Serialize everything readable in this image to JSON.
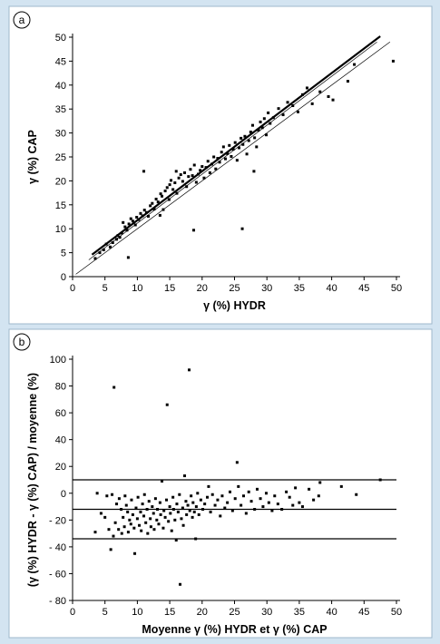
{
  "chart_data": [
    {
      "panel_label": "a",
      "type": "scatter",
      "xlabel": "γ (%) HYDR",
      "ylabel": "γ (%) CAP",
      "xlim": [
        0,
        50
      ],
      "ylim": [
        0,
        50
      ],
      "xticks": [
        "0",
        "5",
        "10",
        "15",
        "20",
        "25",
        "30",
        "35",
        "40",
        "45",
        "50"
      ],
      "yticks": [
        "0",
        "5",
        "10",
        "15",
        "20",
        "25",
        "30",
        "35",
        "40",
        "45",
        "50"
      ],
      "grid": false,
      "lines": [
        {
          "kind": "regression",
          "x": [
            3,
            47.5
          ],
          "y": [
            4.6,
            50.2
          ]
        },
        {
          "kind": "identity",
          "x": [
            0.5,
            49
          ],
          "y": [
            0.5,
            49
          ]
        },
        {
          "kind": "upper-band",
          "x": [
            2.5,
            47
          ],
          "y": [
            3.5,
            49
          ]
        }
      ],
      "points": [
        [
          3.5,
          3.8
        ],
        [
          4.2,
          5.0
        ],
        [
          4.8,
          5.6
        ],
        [
          5.2,
          6.8
        ],
        [
          5.8,
          6.2
        ],
        [
          6.2,
          7.1
        ],
        [
          6.8,
          7.8
        ],
        [
          7.0,
          8.6
        ],
        [
          7.3,
          8.2
        ],
        [
          7.6,
          9.1
        ],
        [
          7.8,
          11.3
        ],
        [
          8.1,
          10.4
        ],
        [
          8.4,
          9.7
        ],
        [
          8.7,
          11.0
        ],
        [
          8.6,
          4.0
        ],
        [
          9.0,
          12.1
        ],
        [
          9.3,
          11.6
        ],
        [
          9.7,
          10.8
        ],
        [
          9.9,
          12.4
        ],
        [
          10.2,
          11.9
        ],
        [
          10.5,
          13.2
        ],
        [
          10.8,
          12.7
        ],
        [
          11.0,
          22.0
        ],
        [
          11.1,
          13.9
        ],
        [
          11.4,
          13.4
        ],
        [
          11.7,
          12.6
        ],
        [
          12.0,
          14.8
        ],
        [
          12.3,
          15.3
        ],
        [
          12.6,
          14.1
        ],
        [
          12.9,
          16.2
        ],
        [
          13.2,
          15.6
        ],
        [
          13.5,
          12.8
        ],
        [
          13.6,
          17.3
        ],
        [
          13.8,
          16.8
        ],
        [
          14.0,
          14.0
        ],
        [
          14.3,
          17.9
        ],
        [
          14.6,
          18.6
        ],
        [
          14.9,
          16.1
        ],
        [
          15.0,
          19.2
        ],
        [
          15.2,
          20.1
        ],
        [
          15.5,
          18.2
        ],
        [
          15.8,
          19.6
        ],
        [
          16.0,
          22.0
        ],
        [
          16.1,
          17.4
        ],
        [
          16.4,
          20.6
        ],
        [
          16.7,
          21.3
        ],
        [
          17.0,
          19.9
        ],
        [
          17.3,
          21.7
        ],
        [
          17.6,
          18.8
        ],
        [
          17.9,
          20.9
        ],
        [
          18.2,
          22.4
        ],
        [
          18.5,
          21.1
        ],
        [
          18.7,
          9.7
        ],
        [
          18.8,
          23.3
        ],
        [
          19.1,
          19.7
        ],
        [
          19.4,
          21.4
        ],
        [
          19.7,
          22.2
        ],
        [
          20.0,
          23.0
        ],
        [
          20.3,
          20.6
        ],
        [
          20.6,
          22.8
        ],
        [
          20.9,
          24.1
        ],
        [
          21.2,
          21.7
        ],
        [
          21.5,
          23.5
        ],
        [
          21.8,
          25.0
        ],
        [
          22.1,
          22.5
        ],
        [
          22.4,
          24.7
        ],
        [
          22.7,
          23.9
        ],
        [
          23.0,
          26.0
        ],
        [
          23.3,
          27.1
        ],
        [
          23.6,
          24.6
        ],
        [
          23.9,
          25.7
        ],
        [
          24.2,
          27.4
        ],
        [
          24.5,
          25.1
        ],
        [
          24.8,
          26.6
        ],
        [
          25.1,
          28.0
        ],
        [
          25.4,
          24.3
        ],
        [
          25.7,
          26.9
        ],
        [
          26.0,
          28.9
        ],
        [
          26.2,
          10.0
        ],
        [
          26.3,
          27.6
        ],
        [
          26.6,
          29.3
        ],
        [
          26.9,
          25.6
        ],
        [
          27.2,
          28.4
        ],
        [
          27.5,
          30.2
        ],
        [
          27.8,
          31.6
        ],
        [
          28.0,
          22.0
        ],
        [
          28.1,
          29.0
        ],
        [
          28.4,
          27.1
        ],
        [
          28.7,
          30.6
        ],
        [
          29.0,
          32.3
        ],
        [
          29.3,
          31.1
        ],
        [
          29.6,
          33.0
        ],
        [
          29.9,
          29.6
        ],
        [
          30.2,
          34.2
        ],
        [
          30.5,
          32.0
        ],
        [
          31.0,
          33.2
        ],
        [
          31.8,
          35.1
        ],
        [
          32.5,
          33.8
        ],
        [
          33.2,
          36.4
        ],
        [
          34.0,
          35.7
        ],
        [
          34.8,
          34.4
        ],
        [
          35.5,
          38.0
        ],
        [
          36.2,
          39.4
        ],
        [
          37.0,
          36.1
        ],
        [
          38.2,
          38.6
        ],
        [
          39.5,
          37.6
        ],
        [
          40.2,
          36.9
        ],
        [
          42.5,
          40.8
        ],
        [
          43.5,
          44.3
        ],
        [
          49.5,
          45.0
        ]
      ]
    },
    {
      "panel_label": "b",
      "type": "scatter",
      "xlabel": "Moyenne γ (%) HYDR et γ (%) CAP",
      "ylabel": "(γ (%) HYDR - γ (%) CAP) / moyenne (%)",
      "xlim": [
        0,
        50
      ],
      "ylim": [
        -80,
        100
      ],
      "xticks": [
        "0",
        "5",
        "10",
        "15",
        "20",
        "25",
        "30",
        "35",
        "40",
        "45",
        "50"
      ],
      "yticks": [
        "- 80",
        "- 60",
        "- 40",
        "- 20",
        "0",
        "20",
        "40",
        "60",
        "80",
        "100"
      ],
      "grid": false,
      "hlines": [
        {
          "kind": "upper-limit",
          "y": 10
        },
        {
          "kind": "mean",
          "y": -12
        },
        {
          "kind": "lower-limit",
          "y": -34
        }
      ],
      "points": [
        [
          3.5,
          -29
        ],
        [
          3.8,
          0
        ],
        [
          4.4,
          -15
        ],
        [
          5.0,
          -18
        ],
        [
          5.3,
          -2
        ],
        [
          5.6,
          -27
        ],
        [
          5.9,
          -42
        ],
        [
          6.1,
          -1
        ],
        [
          6.4,
          79
        ],
        [
          6.3,
          -32
        ],
        [
          6.6,
          -22
        ],
        [
          6.8,
          -8
        ],
        [
          7.1,
          -27
        ],
        [
          7.2,
          -4
        ],
        [
          7.5,
          -12
        ],
        [
          7.6,
          -30
        ],
        [
          7.8,
          -18
        ],
        [
          8.0,
          -25
        ],
        [
          8.1,
          -2
        ],
        [
          8.3,
          -9
        ],
        [
          8.5,
          -14
        ],
        [
          8.6,
          -29
        ],
        [
          8.8,
          -20
        ],
        [
          9.0,
          -23
        ],
        [
          9.1,
          -5
        ],
        [
          9.3,
          -16
        ],
        [
          9.5,
          -26
        ],
        [
          9.6,
          -45
        ],
        [
          9.8,
          -11
        ],
        [
          10.0,
          -19
        ],
        [
          10.1,
          -3
        ],
        [
          10.3,
          -24
        ],
        [
          10.5,
          -14
        ],
        [
          10.6,
          -28
        ],
        [
          10.8,
          -8
        ],
        [
          11.0,
          -17
        ],
        [
          11.1,
          -1
        ],
        [
          11.3,
          -22
        ],
        [
          11.5,
          -12
        ],
        [
          11.6,
          -30
        ],
        [
          11.8,
          -6
        ],
        [
          12.0,
          -19
        ],
        [
          12.1,
          -25
        ],
        [
          12.3,
          -10
        ],
        [
          12.5,
          -15
        ],
        [
          12.6,
          -27
        ],
        [
          12.8,
          -4
        ],
        [
          13.0,
          -20
        ],
        [
          13.1,
          -12
        ],
        [
          13.3,
          -23
        ],
        [
          13.5,
          -7
        ],
        [
          13.6,
          -16
        ],
        [
          13.8,
          9
        ],
        [
          14.0,
          -26
        ],
        [
          14.1,
          -13
        ],
        [
          14.3,
          -18
        ],
        [
          14.5,
          -5
        ],
        [
          14.6,
          66
        ],
        [
          14.8,
          -21
        ],
        [
          15.0,
          -10
        ],
        [
          15.1,
          -15
        ],
        [
          15.3,
          -28
        ],
        [
          15.5,
          -3
        ],
        [
          15.6,
          -12
        ],
        [
          15.8,
          -20
        ],
        [
          16.0,
          -35
        ],
        [
          16.1,
          -8
        ],
        [
          16.3,
          -14
        ],
        [
          16.5,
          -1
        ],
        [
          16.6,
          -68
        ],
        [
          16.8,
          -19
        ],
        [
          17.0,
          -11
        ],
        [
          17.1,
          -24
        ],
        [
          17.3,
          13
        ],
        [
          17.5,
          -6
        ],
        [
          17.6,
          -16
        ],
        [
          17.8,
          -9
        ],
        [
          18.0,
          92
        ],
        [
          18.1,
          -13
        ],
        [
          18.3,
          -2
        ],
        [
          18.5,
          -18
        ],
        [
          18.6,
          -7
        ],
        [
          18.8,
          -14
        ],
        [
          19.0,
          -34
        ],
        [
          19.1,
          -10
        ],
        [
          19.3,
          0
        ],
        [
          19.5,
          -16
        ],
        [
          19.8,
          -5
        ],
        [
          20.1,
          -12
        ],
        [
          20.4,
          -8
        ],
        [
          20.8,
          -3
        ],
        [
          21.0,
          5
        ],
        [
          21.3,
          -14
        ],
        [
          21.6,
          -1
        ],
        [
          22.0,
          -9
        ],
        [
          22.4,
          -5
        ],
        [
          22.8,
          -17
        ],
        [
          23.1,
          -2
        ],
        [
          23.5,
          -11
        ],
        [
          23.9,
          -7
        ],
        [
          24.3,
          1
        ],
        [
          24.7,
          -13
        ],
        [
          25.1,
          -4
        ],
        [
          25.4,
          23
        ],
        [
          25.6,
          5
        ],
        [
          26.0,
          -9
        ],
        [
          26.4,
          -2
        ],
        [
          26.8,
          -15
        ],
        [
          27.2,
          1
        ],
        [
          27.6,
          -6
        ],
        [
          28.1,
          -12
        ],
        [
          28.5,
          3
        ],
        [
          29.0,
          -4
        ],
        [
          29.4,
          -10
        ],
        [
          29.9,
          0
        ],
        [
          30.3,
          -7
        ],
        [
          30.8,
          -13
        ],
        [
          31.2,
          -2
        ],
        [
          31.7,
          -8
        ],
        [
          32.3,
          -12
        ],
        [
          33.0,
          1
        ],
        [
          33.5,
          -3
        ],
        [
          34.0,
          -9
        ],
        [
          34.4,
          4
        ],
        [
          35.0,
          -7
        ],
        [
          35.5,
          -10
        ],
        [
          36.5,
          3
        ],
        [
          37.2,
          -5
        ],
        [
          38.2,
          8
        ],
        [
          38.0,
          -2
        ],
        [
          41.5,
          5
        ],
        [
          43.8,
          -1
        ],
        [
          47.5,
          10
        ]
      ]
    }
  ]
}
